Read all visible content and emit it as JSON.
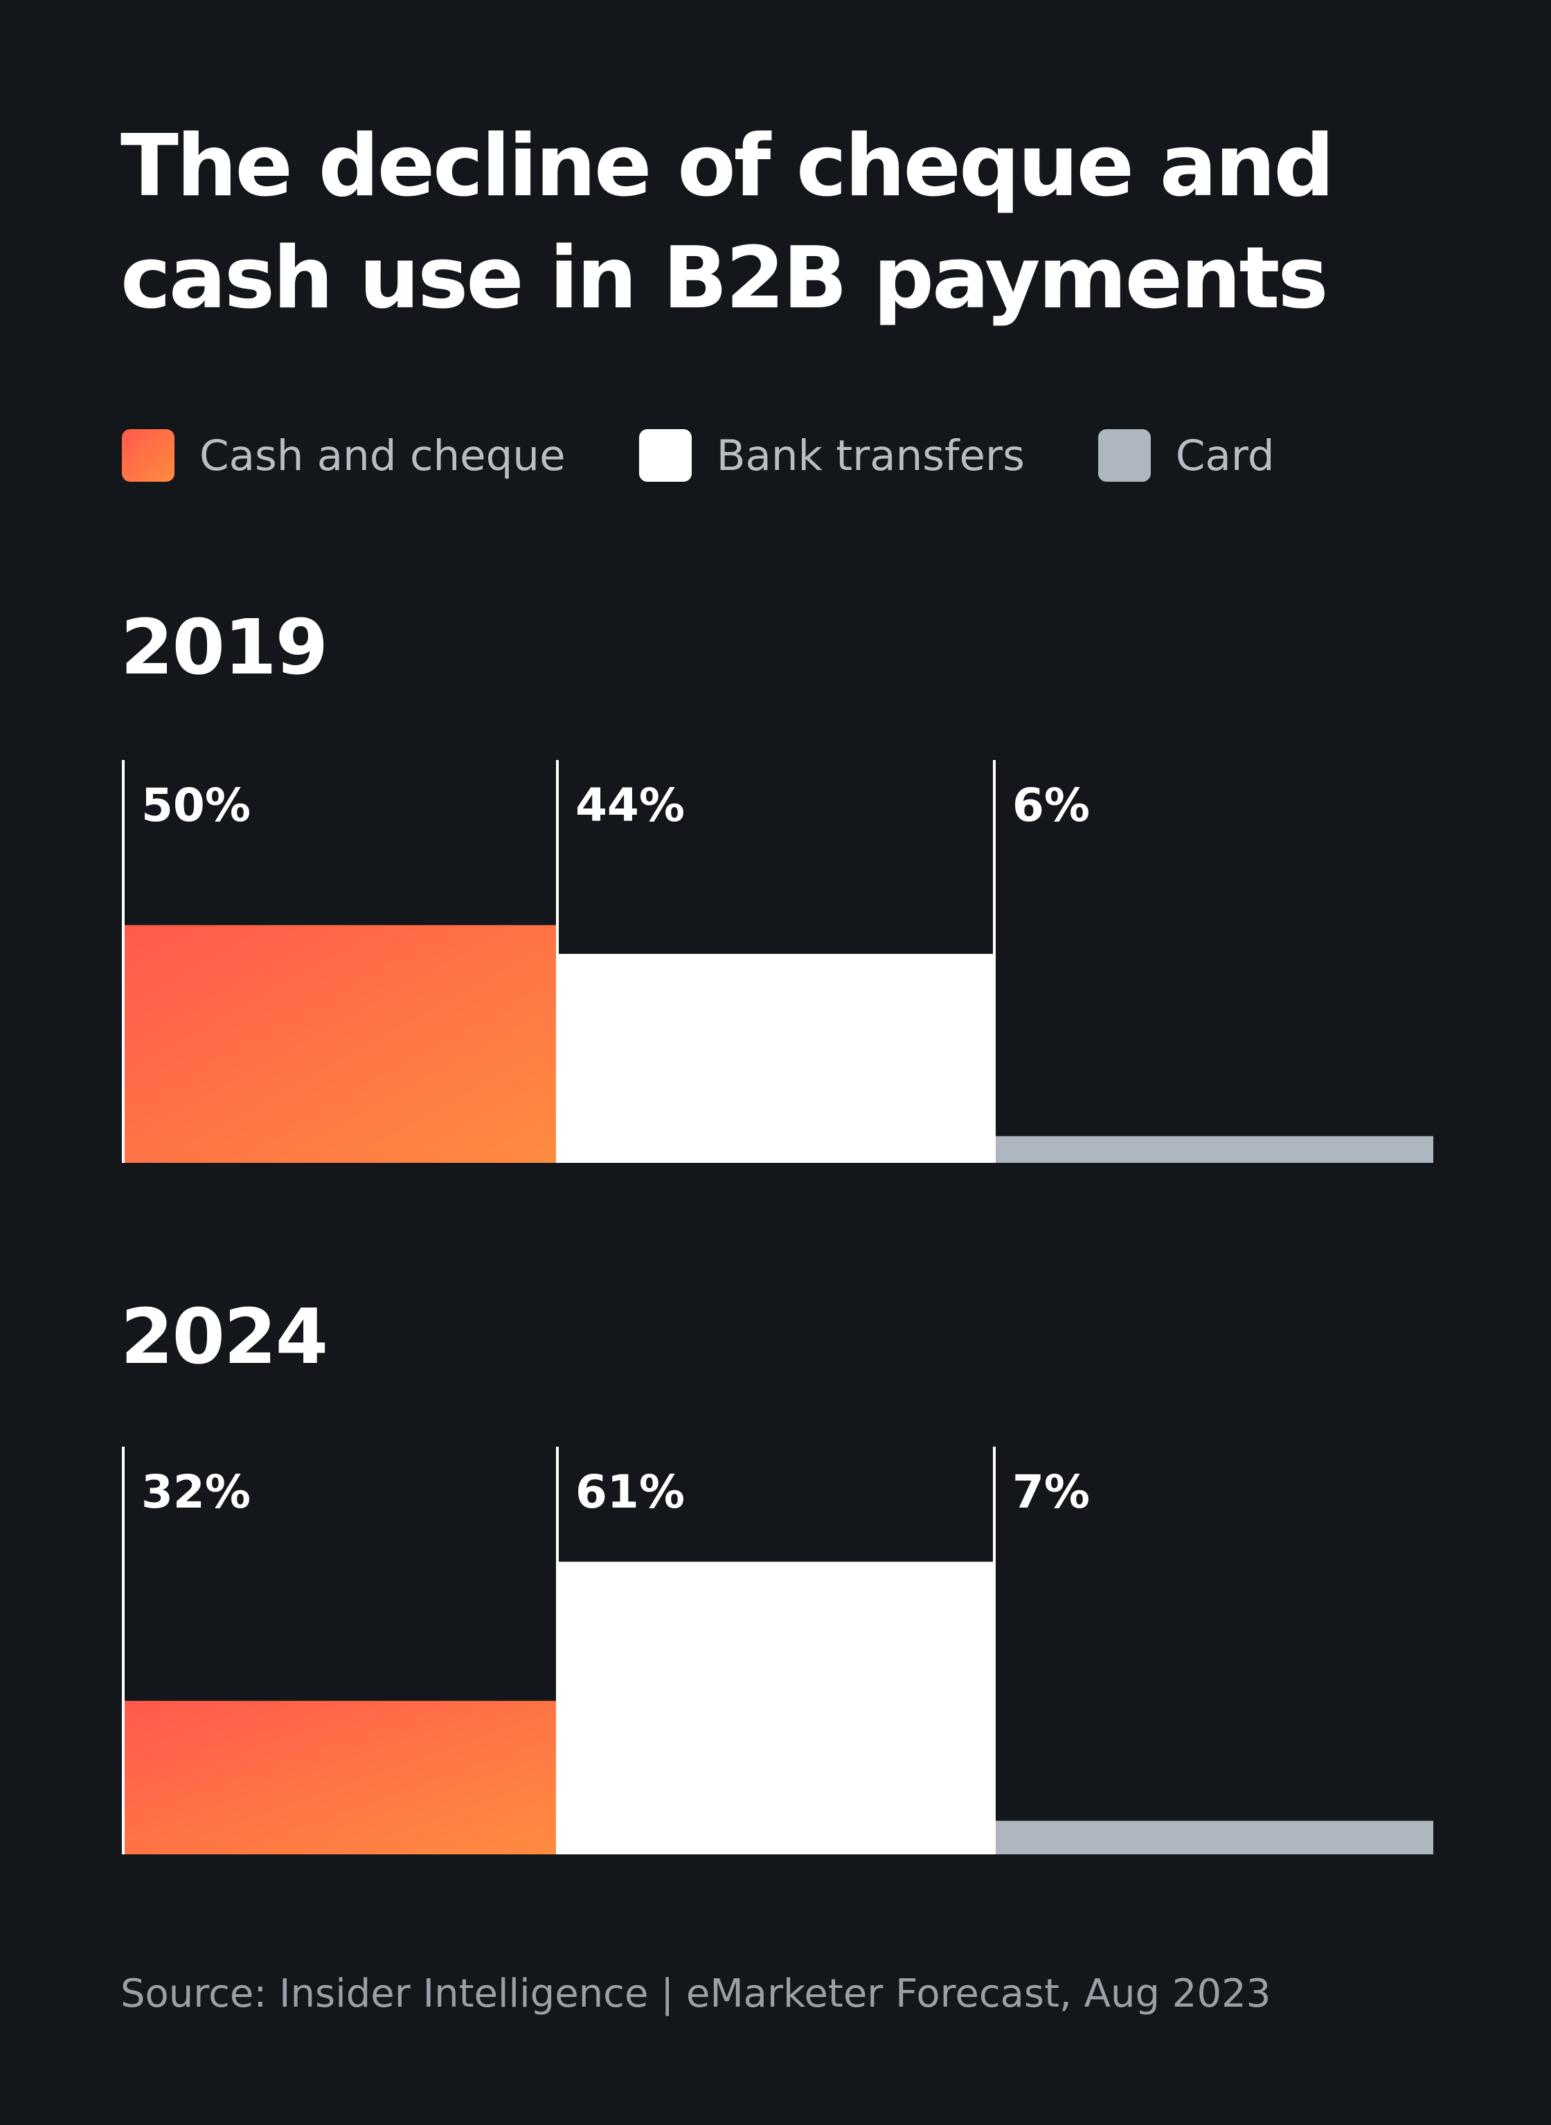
{
  "title_lines": [
    "The decline of cheque and",
    "cash use in B2B payments"
  ],
  "legend": [
    {
      "label": "Cash and cheque",
      "color": "#ff6a47"
    },
    {
      "label": "Bank transfers",
      "color": "#ffffff"
    },
    {
      "label": "Card",
      "color": "#aeb6bf"
    }
  ],
  "chart_data": [
    {
      "type": "bar",
      "title": "2019",
      "categories": [
        "Cash and cheque",
        "Bank transfers",
        "Card"
      ],
      "values": [
        50,
        44,
        6
      ],
      "data_labels": [
        "50%",
        "44%",
        "6%"
      ],
      "ylim": [
        0,
        85
      ],
      "legend_position": "top"
    },
    {
      "type": "bar",
      "title": "2024",
      "categories": [
        "Cash and cheque",
        "Bank transfers",
        "Card"
      ],
      "values": [
        32,
        61,
        7
      ],
      "data_labels": [
        "32%",
        "61%",
        "7%"
      ],
      "ylim": [
        0,
        85
      ],
      "legend_position": "top"
    }
  ],
  "source": "Source: Insider Intelligence | eMarketer Forecast, Aug 2023"
}
